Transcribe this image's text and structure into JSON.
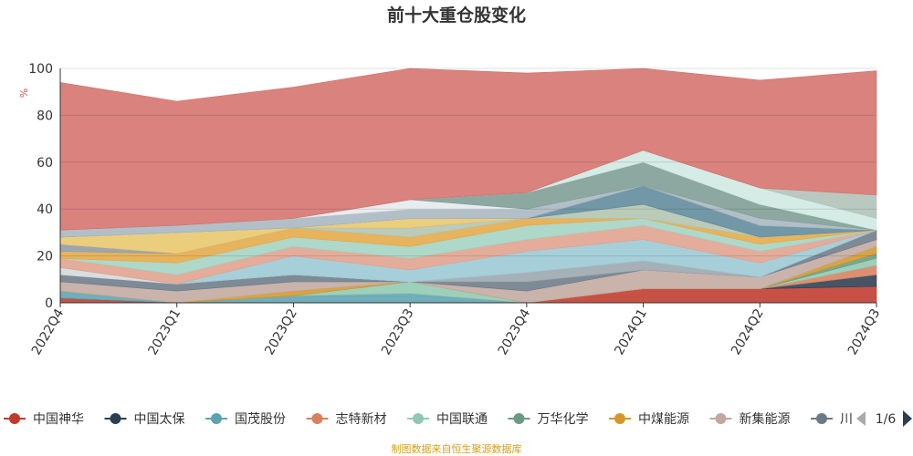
{
  "chart_data": {
    "type": "area",
    "stacked": true,
    "title": "前十大重仓股变化",
    "ylabel": "%",
    "ylim": [
      0,
      100
    ],
    "yticks": [
      0,
      20,
      40,
      60,
      80,
      100
    ],
    "categories": [
      "2022Q4",
      "2023Q1",
      "2023Q2",
      "2023Q3",
      "2023Q4",
      "2024Q1",
      "2024Q2",
      "2024Q3"
    ],
    "series": [
      {
        "name": "中国神华",
        "color": "#c0392b",
        "values": [
          2,
          0,
          0,
          0,
          0,
          6,
          6,
          7
        ]
      },
      {
        "name": "中国太保",
        "color": "#2c3e50",
        "values": [
          0,
          0,
          0,
          0,
          0,
          0,
          0,
          5
        ]
      },
      {
        "name": "国茂股份",
        "color": "#5ba3b0",
        "values": [
          3,
          0,
          3,
          4,
          0,
          0,
          0,
          0
        ]
      },
      {
        "name": "志特新材",
        "color": "#d9805f",
        "values": [
          0,
          0,
          0,
          0,
          0,
          0,
          0,
          4
        ]
      },
      {
        "name": "中国联通",
        "color": "#8fc9b2",
        "values": [
          0,
          0,
          0,
          5,
          0,
          0,
          0,
          3
        ]
      },
      {
        "name": "万华化学",
        "color": "#6b9a80",
        "values": [
          0,
          0,
          0,
          0,
          0,
          0,
          0,
          2
        ]
      },
      {
        "name": "中煤能源",
        "color": "#d4962a",
        "values": [
          0,
          0,
          2,
          0,
          0,
          0,
          0,
          3
        ]
      },
      {
        "name": "新集能源",
        "color": "#c1a89f",
        "values": [
          4,
          5,
          4,
          0,
          5,
          8,
          5,
          3
        ]
      },
      {
        "name": "",
        "color": "#6c7a87",
        "values": [
          3,
          3,
          3,
          0,
          4,
          0,
          0,
          4
        ]
      },
      {
        "name": "",
        "color": "#9aa5ad",
        "values": [
          0,
          0,
          0,
          0,
          4,
          4,
          0,
          0
        ]
      },
      {
        "name": "",
        "color": "#d5d8dc",
        "values": [
          3,
          0,
          0,
          0,
          0,
          0,
          0,
          0
        ]
      },
      {
        "name": "",
        "color": "#9bc8d4",
        "values": [
          0,
          0,
          8,
          5,
          9,
          9,
          6,
          0
        ]
      },
      {
        "name": "",
        "color": "#e0a08c",
        "values": [
          4,
          4,
          4,
          5,
          5,
          6,
          5,
          0
        ]
      },
      {
        "name": "",
        "color": "#a3d3c1",
        "values": [
          0,
          5,
          4,
          5,
          6,
          3,
          3,
          0
        ]
      },
      {
        "name": "",
        "color": "#e4a845",
        "values": [
          3,
          4,
          4,
          4,
          3,
          0,
          3,
          0
        ]
      },
      {
        "name": "",
        "color": "#b0c4b0",
        "values": [
          0,
          0,
          0,
          4,
          0,
          6,
          0,
          0
        ]
      },
      {
        "name": "",
        "color": "#c9b2a9",
        "values": [
          0,
          0,
          0,
          0,
          0,
          0,
          0,
          0
        ]
      },
      {
        "name": "",
        "color": "#8e9aa4",
        "values": [
          3,
          0,
          0,
          0,
          0,
          0,
          0,
          0
        ]
      },
      {
        "name": "",
        "color": "#e8c66c",
        "values": [
          3,
          9,
          0,
          4,
          0,
          0,
          0,
          0
        ]
      },
      {
        "name": "",
        "color": "#5f8a9c",
        "values": [
          0,
          0,
          0,
          0,
          0,
          8,
          5,
          0
        ]
      },
      {
        "name": "",
        "color": "#b9d9cf",
        "values": [
          0,
          0,
          0,
          0,
          0,
          0,
          0,
          0
        ]
      },
      {
        "name": "",
        "color": "#8aa49a",
        "values": [
          0,
          0,
          0,
          0,
          0,
          0,
          0,
          0
        ]
      },
      {
        "name": "",
        "color": "#a9b6c0",
        "values": [
          3,
          3,
          4,
          4,
          4,
          0,
          3,
          0
        ]
      },
      {
        "name": "",
        "color": "#e6e9ec",
        "values": [
          0,
          0,
          0,
          4,
          0,
          0,
          0,
          0
        ]
      },
      {
        "name": "",
        "color": "#7d9c94",
        "values": [
          0,
          0,
          0,
          0,
          7,
          10,
          6,
          0
        ]
      },
      {
        "name": "",
        "color": "#cfe8e2",
        "values": [
          0,
          0,
          0,
          0,
          0,
          5,
          7,
          5
        ]
      },
      {
        "name": "",
        "color": "#afc2b7",
        "values": [
          0,
          0,
          0,
          0,
          0,
          0,
          0,
          10
        ]
      },
      {
        "name": "",
        "color": "#d4716c",
        "values": [
          63,
          53,
          56,
          56,
          51,
          35,
          46,
          53
        ]
      }
    ],
    "legend_position": "bottom",
    "legend_visible_items": [
      "中国神华",
      "中国太保",
      "国茂股份",
      "志特新材",
      "中国联通",
      "万华化学",
      "中煤能源",
      "新集能源"
    ],
    "legend_cut_label": "川",
    "legend_page": "1/6"
  },
  "footer": "制图数据来自恒生聚源数据库"
}
